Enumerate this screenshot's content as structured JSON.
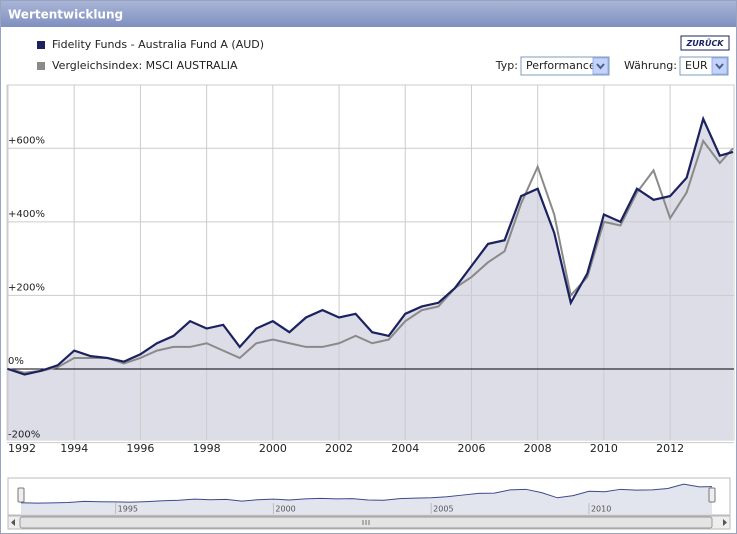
{
  "ui": {
    "header": "Wertentwicklung",
    "back_button": "ZURÜCK",
    "type_label": "Typ:",
    "type_value": "Performance",
    "currency_label": "Währung:",
    "currency_value": "EUR"
  },
  "chart_data": {
    "type": "line",
    "x": [
      1992.0,
      1992.5,
      1993.0,
      1993.5,
      1994.0,
      1994.5,
      1995.0,
      1995.5,
      1996.0,
      1996.5,
      1997.0,
      1997.5,
      1998.0,
      1998.5,
      1999.0,
      1999.5,
      2000.0,
      2000.5,
      2001.0,
      2001.5,
      2002.0,
      2002.5,
      2003.0,
      2003.5,
      2004.0,
      2004.5,
      2005.0,
      2005.5,
      2006.0,
      2006.5,
      2007.0,
      2007.5,
      2008.0,
      2008.5,
      2009.0,
      2009.5,
      2010.0,
      2010.5,
      2011.0,
      2011.5,
      2012.0,
      2012.5,
      2013.0,
      2013.5,
      2013.9
    ],
    "series": [
      {
        "name": "Fidelity Funds - Australia Fund A (AUD)",
        "color": "#1c2260",
        "values": [
          0,
          -15,
          -5,
          10,
          50,
          35,
          30,
          20,
          40,
          70,
          90,
          130,
          110,
          120,
          60,
          110,
          130,
          100,
          140,
          160,
          140,
          150,
          100,
          90,
          150,
          170,
          180,
          220,
          280,
          340,
          350,
          470,
          490,
          370,
          180,
          260,
          420,
          400,
          490,
          460,
          470,
          520,
          680,
          580,
          590
        ]
      },
      {
        "name": "Vergleichsindex: MSCI AUSTRALIA",
        "color": "#8a8a8a",
        "values": [
          0,
          -10,
          -5,
          5,
          30,
          30,
          30,
          15,
          30,
          50,
          60,
          60,
          70,
          50,
          30,
          70,
          80,
          70,
          60,
          60,
          70,
          90,
          70,
          80,
          130,
          160,
          170,
          220,
          250,
          290,
          320,
          450,
          550,
          420,
          200,
          250,
          400,
          390,
          480,
          540,
          410,
          480,
          620,
          560,
          600
        ]
      }
    ],
    "xlim": [
      1992,
      2013.9
    ],
    "xticks": [
      1992,
      1994,
      1996,
      1998,
      2000,
      2002,
      2004,
      2006,
      2008,
      2010,
      2012
    ],
    "ylim": [
      -193,
      772
    ],
    "yticks": [
      {
        "value": -200,
        "label": "-200%"
      },
      {
        "value": 0,
        "label": "0%"
      },
      {
        "value": 200,
        "label": "+200%"
      },
      {
        "value": 400,
        "label": "+400%"
      },
      {
        "value": 600,
        "label": "+600%"
      }
    ],
    "grid": true
  },
  "navigator": {
    "xticks": [
      1995,
      2000,
      2005,
      2010
    ]
  }
}
